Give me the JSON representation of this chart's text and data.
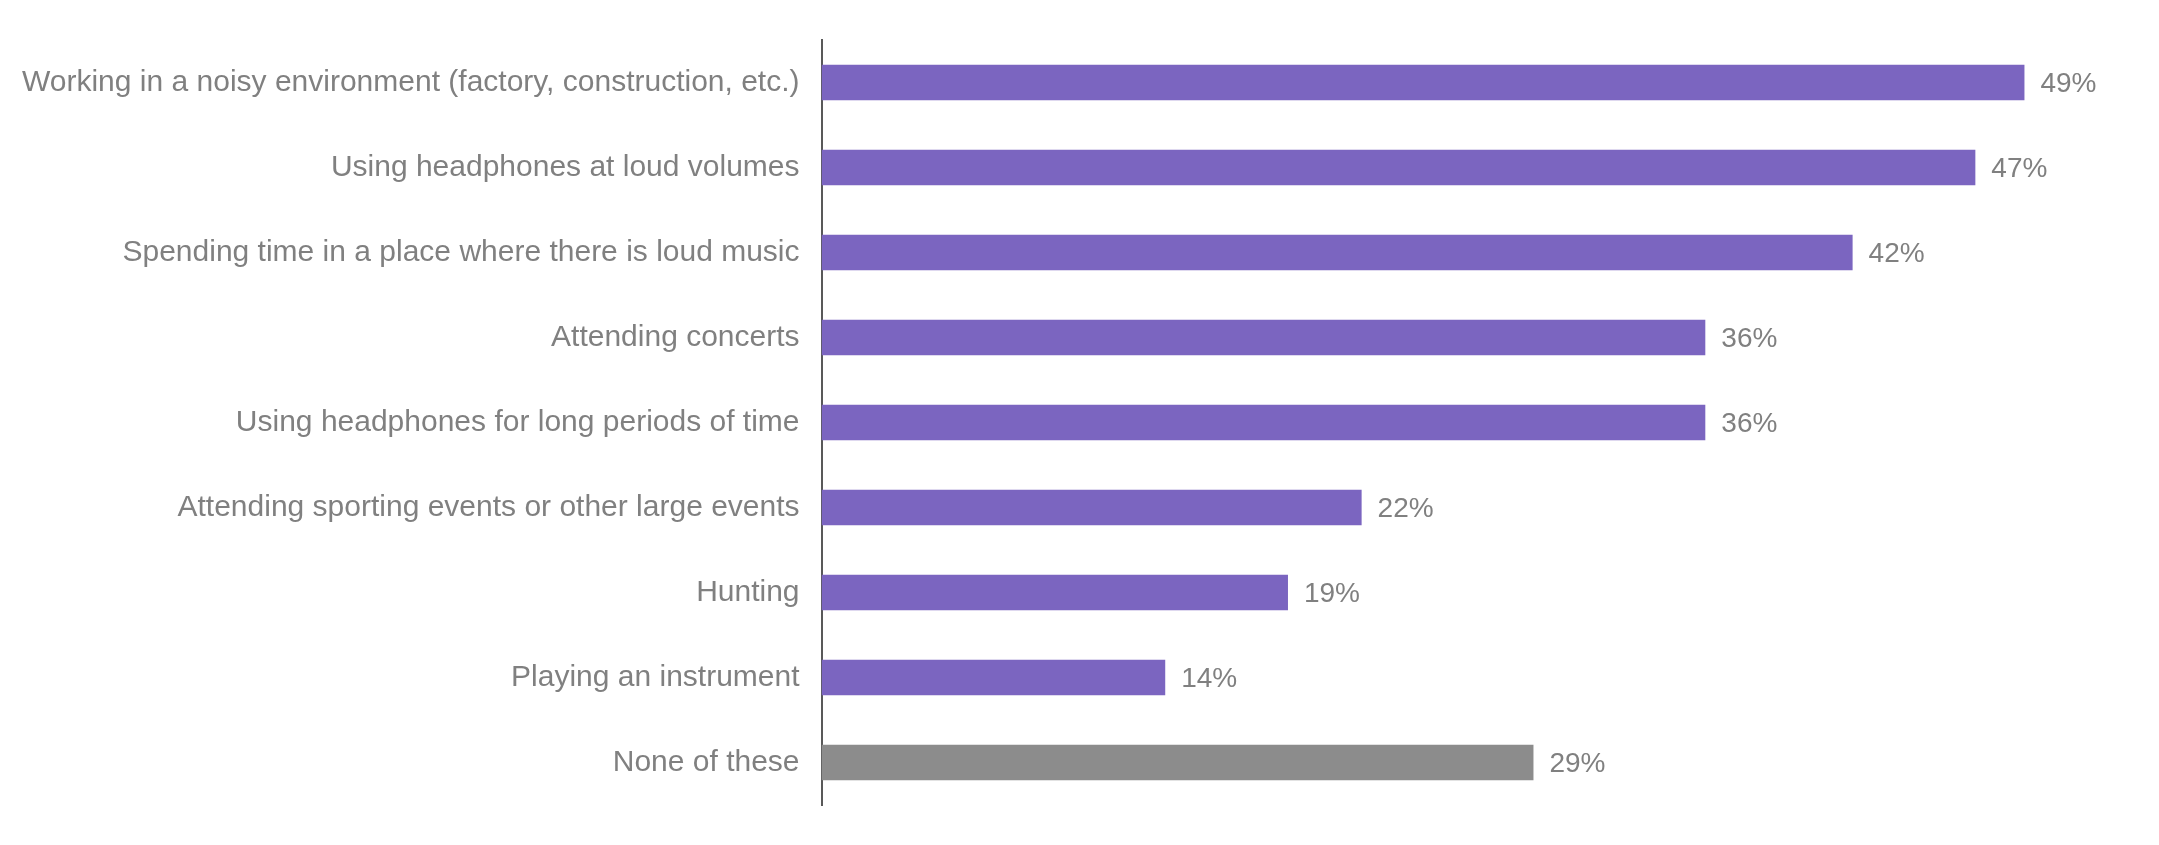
{
  "chart_data": {
    "type": "bar",
    "orientation": "horizontal",
    "categories": [
      "Working in a noisy environment (factory, construction, etc.)",
      "Using headphones at loud volumes",
      "Spending time in a place where there is loud music",
      "Attending concerts",
      "Using headphones for long periods of time",
      "Attending sporting events or other large events",
      "Hunting",
      "Playing an instrument",
      "None of these"
    ],
    "values": [
      49,
      47,
      42,
      36,
      36,
      22,
      19,
      14,
      29
    ],
    "colors": [
      "#7b65c0",
      "#7b65c0",
      "#7b65c0",
      "#7b65c0",
      "#7b65c0",
      "#7b65c0",
      "#7b65c0",
      "#7b65c0",
      "#8c8c8c"
    ],
    "value_labels": [
      "49%",
      "47%",
      "42%",
      "36%",
      "36%",
      "22%",
      "19%",
      "14%",
      "29%"
    ],
    "legend": false,
    "tick_labels": "y"
  }
}
